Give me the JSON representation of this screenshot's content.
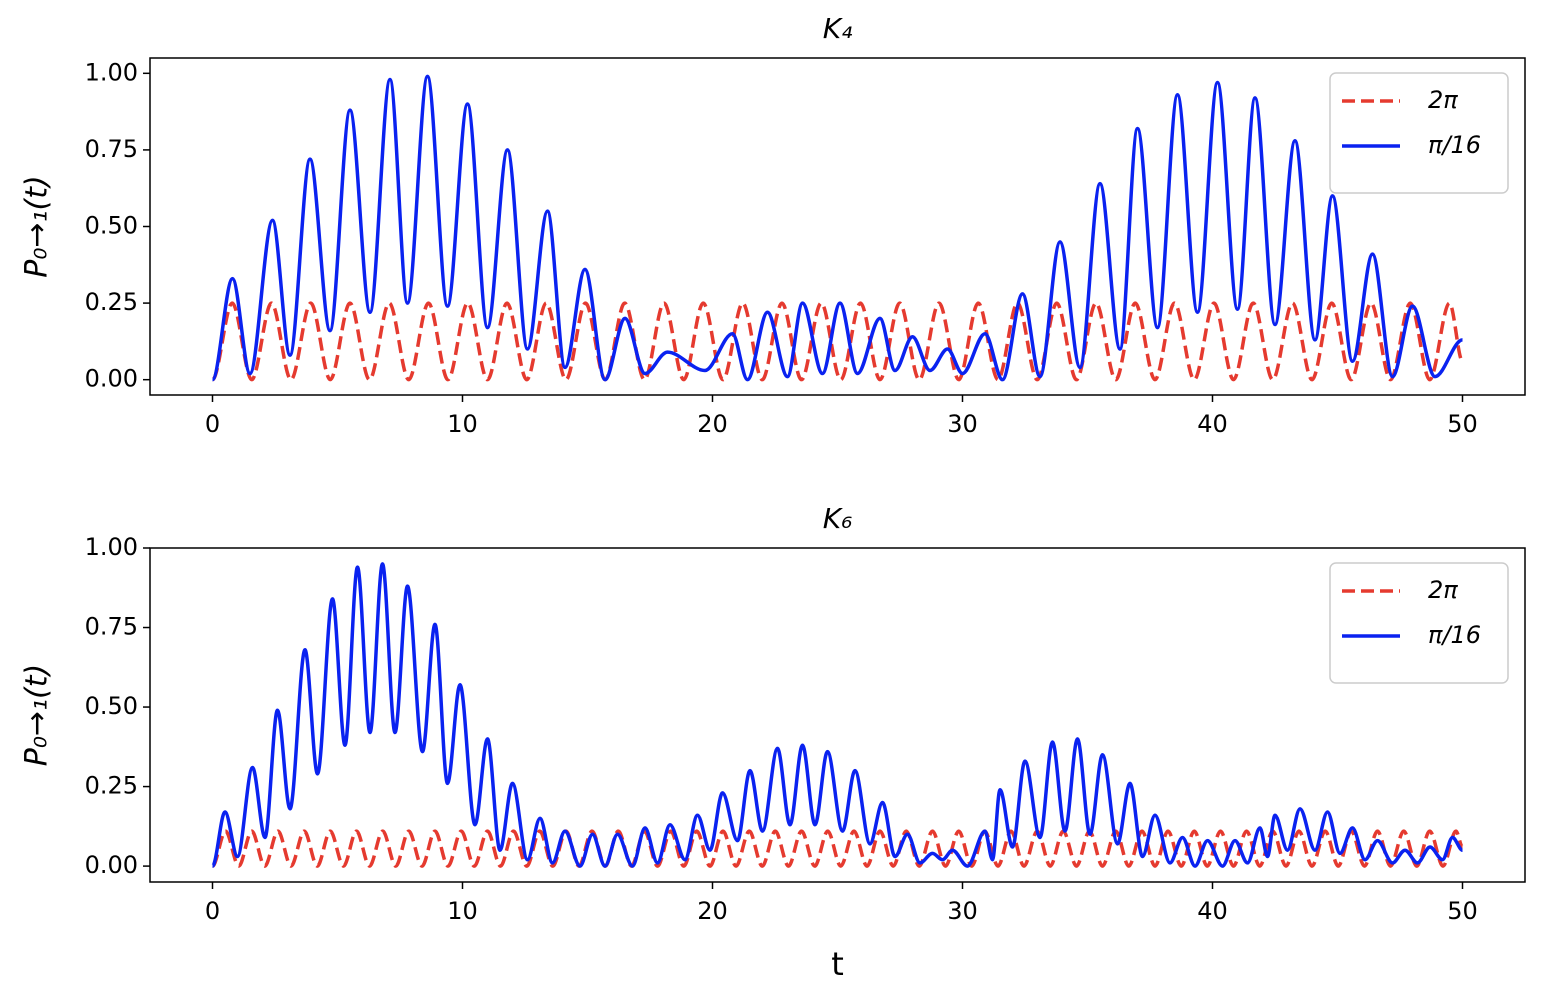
{
  "chart_data": [
    {
      "type": "line",
      "title": "K₄",
      "y_label": "P₀→₁(t)",
      "xlim": [
        -2.5,
        52.5
      ],
      "ylim": [
        -0.05,
        1.05
      ],
      "xticks": [
        0,
        10,
        20,
        30,
        40,
        50
      ],
      "yticks": [
        {
          "value": 0,
          "label": "0.00"
        },
        {
          "value": 0.25,
          "label": "0.25"
        },
        {
          "value": 0.5,
          "label": "0.50"
        },
        {
          "value": 0.75,
          "label": "0.75"
        },
        {
          "value": 1,
          "label": "1.00"
        }
      ],
      "legend": "upper right",
      "series": [
        {
          "name": "2π",
          "color": "#e53a2f",
          "linestyle": "dashed",
          "x": [
            0,
            0.79,
            1.57,
            2.36,
            3.14,
            3.93,
            4.71,
            5.5,
            6.28,
            7.07,
            7.85,
            8.64,
            9.42,
            10.21,
            11.0,
            11.78,
            12.57,
            13.35,
            14.14,
            14.92,
            15.71,
            16.49,
            17.28,
            18.06,
            18.85,
            19.63,
            20.42,
            21.21,
            21.99,
            22.78,
            23.56,
            24.35,
            25.13,
            25.92,
            26.7,
            27.49,
            28.27,
            29.06,
            29.85,
            30.63,
            31.42,
            32.2,
            32.99,
            33.77,
            34.56,
            35.34,
            36.13,
            36.91,
            37.7,
            38.48,
            39.27,
            40.06,
            40.84,
            41.63,
            42.41,
            43.2,
            43.98,
            44.77,
            45.55,
            46.34,
            47.12,
            47.91,
            48.69,
            49.48,
            50.0
          ],
          "values": [
            0,
            0.25,
            0,
            0.25,
            0,
            0.25,
            0,
            0.25,
            0,
            0.25,
            0,
            0.25,
            0,
            0.25,
            0,
            0.25,
            0,
            0.25,
            0,
            0.25,
            0,
            0.25,
            0,
            0.25,
            0,
            0.25,
            0,
            0.25,
            0,
            0.25,
            0,
            0.25,
            0,
            0.25,
            0,
            0.25,
            0,
            0.25,
            0,
            0.25,
            0,
            0.25,
            0,
            0.25,
            0,
            0.25,
            0,
            0.25,
            0,
            0.25,
            0,
            0.25,
            0,
            0.25,
            0,
            0.25,
            0,
            0.25,
            0,
            0.25,
            0,
            0.25,
            0,
            0.25,
            0.06
          ]
        },
        {
          "name": "π/16",
          "color": "#0a22f0",
          "linestyle": "solid",
          "x": [
            0,
            0.8,
            1.5,
            2.4,
            3.1,
            3.9,
            4.7,
            5.5,
            6.3,
            7.1,
            7.8,
            8.6,
            9.4,
            10.2,
            11.0,
            11.8,
            12.6,
            13.4,
            14.1,
            14.9,
            15.7,
            16.5,
            17.3,
            18.2,
            19.7,
            20.8,
            21.4,
            22.2,
            23.0,
            23.6,
            24.4,
            25.1,
            25.8,
            26.7,
            27.3,
            28.0,
            28.7,
            29.4,
            30.0,
            30.9,
            31.6,
            32.4,
            33.1,
            33.9,
            34.7,
            35.5,
            36.3,
            37.0,
            37.8,
            38.6,
            39.4,
            40.2,
            41.0,
            41.7,
            42.5,
            43.3,
            44.1,
            44.8,
            45.6,
            46.4,
            47.2,
            48.0,
            48.9,
            50.0
          ],
          "values": [
            0,
            0.33,
            0.02,
            0.52,
            0.08,
            0.72,
            0.16,
            0.88,
            0.22,
            0.98,
            0.25,
            0.99,
            0.24,
            0.9,
            0.17,
            0.75,
            0.1,
            0.55,
            0.04,
            0.36,
            0,
            0.2,
            0.02,
            0.09,
            0.03,
            0.15,
            0,
            0.22,
            0.01,
            0.25,
            0.02,
            0.25,
            0.02,
            0.2,
            0.03,
            0.14,
            0.03,
            0.1,
            0.02,
            0.15,
            0,
            0.28,
            0.01,
            0.45,
            0.04,
            0.64,
            0.1,
            0.82,
            0.17,
            0.93,
            0.22,
            0.97,
            0.23,
            0.92,
            0.18,
            0.78,
            0.13,
            0.6,
            0.06,
            0.41,
            0.01,
            0.24,
            0.01,
            0.13
          ]
        }
      ]
    },
    {
      "type": "line",
      "title": "K₆",
      "y_label": "P₀→₁(t)",
      "x_label": "t",
      "xlim": [
        -2.5,
        52.5
      ],
      "ylim": [
        -0.05,
        1.0
      ],
      "xticks": [
        0,
        10,
        20,
        30,
        40,
        50
      ],
      "yticks": [
        {
          "value": 0,
          "label": "0.00"
        },
        {
          "value": 0.25,
          "label": "0.25"
        },
        {
          "value": 0.5,
          "label": "0.50"
        },
        {
          "value": 0.75,
          "label": "0.75"
        },
        {
          "value": 1,
          "label": "1.00"
        }
      ],
      "legend": "upper right",
      "series": [
        {
          "name": "2π",
          "color": "#e53a2f",
          "linestyle": "dashed",
          "x": [
            0,
            0.52,
            1.05,
            1.57,
            2.09,
            2.62,
            3.14,
            3.67,
            4.19,
            4.71,
            5.24,
            5.76,
            6.28,
            6.81,
            7.33,
            7.85,
            8.38,
            8.9,
            9.42,
            9.95,
            10.47,
            11.0,
            11.52,
            12.04,
            12.57,
            13.09,
            13.61,
            14.14,
            14.66,
            15.18,
            15.71,
            16.23,
            16.76,
            17.28,
            17.8,
            18.33,
            18.85,
            19.37,
            19.9,
            20.42,
            20.94,
            21.47,
            21.99,
            22.51,
            23.04,
            23.56,
            24.09,
            24.61,
            25.13,
            25.66,
            26.18,
            26.7,
            27.23,
            27.75,
            28.27,
            28.8,
            29.32,
            29.85,
            30.37,
            30.89,
            31.42,
            31.94,
            32.46,
            32.99,
            33.51,
            34.03,
            34.56,
            35.08,
            35.6,
            36.13,
            36.65,
            37.18,
            37.7,
            38.22,
            38.75,
            39.27,
            39.79,
            40.32,
            40.84,
            41.36,
            41.89,
            42.41,
            42.94,
            43.46,
            43.98,
            44.51,
            45.03,
            45.55,
            46.08,
            46.6,
            47.12,
            47.65,
            48.17,
            48.69,
            49.22,
            49.74,
            50.0
          ],
          "values": [
            0,
            0.11,
            0,
            0.11,
            0,
            0.11,
            0,
            0.11,
            0,
            0.11,
            0,
            0.11,
            0,
            0.11,
            0,
            0.11,
            0,
            0.11,
            0,
            0.11,
            0,
            0.11,
            0,
            0.11,
            0,
            0.11,
            0,
            0.11,
            0,
            0.11,
            0,
            0.11,
            0,
            0.11,
            0,
            0.11,
            0,
            0.11,
            0,
            0.11,
            0,
            0.11,
            0,
            0.11,
            0,
            0.11,
            0,
            0.11,
            0,
            0.11,
            0,
            0.11,
            0,
            0.11,
            0,
            0.11,
            0,
            0.11,
            0,
            0.11,
            0,
            0.11,
            0,
            0.11,
            0,
            0.11,
            0,
            0.11,
            0,
            0.11,
            0,
            0.11,
            0,
            0.11,
            0,
            0.11,
            0,
            0.11,
            0,
            0.11,
            0,
            0.11,
            0,
            0.11,
            0,
            0.11,
            0,
            0.11,
            0,
            0.11,
            0,
            0.11,
            0,
            0.11,
            0,
            0.11,
            0.06
          ]
        },
        {
          "name": "π/16",
          "color": "#0a22f0",
          "linestyle": "solid",
          "x": [
            0,
            0.5,
            1.0,
            1.6,
            2.1,
            2.6,
            3.1,
            3.7,
            4.2,
            4.8,
            5.3,
            5.8,
            6.3,
            6.8,
            7.3,
            7.8,
            8.4,
            8.9,
            9.4,
            9.9,
            10.5,
            11.0,
            11.5,
            12.0,
            12.6,
            13.1,
            13.6,
            14.1,
            14.7,
            15.2,
            15.7,
            16.2,
            16.8,
            17.3,
            17.8,
            18.3,
            18.9,
            19.4,
            19.9,
            20.4,
            21.0,
            21.5,
            22.0,
            22.6,
            23.1,
            23.6,
            24.1,
            24.6,
            25.2,
            25.7,
            26.3,
            26.8,
            27.3,
            27.8,
            28.3,
            28.8,
            29.2,
            29.6,
            30.2,
            30.9,
            31.2,
            31.5,
            32.0,
            32.5,
            33.1,
            33.6,
            34.1,
            34.6,
            35.1,
            35.6,
            36.2,
            36.7,
            37.2,
            37.7,
            38.3,
            38.8,
            39.3,
            39.8,
            40.4,
            40.9,
            41.4,
            41.9,
            42.2,
            42.5,
            43.0,
            43.5,
            44.1,
            44.6,
            45.1,
            45.6,
            46.1,
            46.6,
            47.2,
            47.7,
            48.2,
            48.7,
            49.2,
            49.6,
            50.0
          ],
          "values": [
            0,
            0.17,
            0.03,
            0.31,
            0.09,
            0.49,
            0.18,
            0.68,
            0.29,
            0.84,
            0.38,
            0.94,
            0.42,
            0.95,
            0.42,
            0.88,
            0.36,
            0.76,
            0.26,
            0.57,
            0.13,
            0.4,
            0.05,
            0.26,
            0.02,
            0.15,
            0.01,
            0.11,
            0,
            0.1,
            0,
            0.1,
            0,
            0.12,
            0.01,
            0.13,
            0.02,
            0.16,
            0.05,
            0.23,
            0.08,
            0.3,
            0.11,
            0.37,
            0.13,
            0.38,
            0.13,
            0.36,
            0.11,
            0.3,
            0.07,
            0.2,
            0.03,
            0.1,
            0.01,
            0.04,
            0.02,
            0.05,
            0,
            0.11,
            0.02,
            0.24,
            0.06,
            0.33,
            0.09,
            0.39,
            0.11,
            0.4,
            0.1,
            0.35,
            0.07,
            0.26,
            0.03,
            0.16,
            0.01,
            0.09,
            0,
            0.08,
            0,
            0.08,
            0.01,
            0.12,
            0.03,
            0.16,
            0.05,
            0.18,
            0.05,
            0.17,
            0.04,
            0.12,
            0.02,
            0.08,
            0.01,
            0.05,
            0.01,
            0.06,
            0.02,
            0.09,
            0.05
          ]
        }
      ]
    }
  ]
}
